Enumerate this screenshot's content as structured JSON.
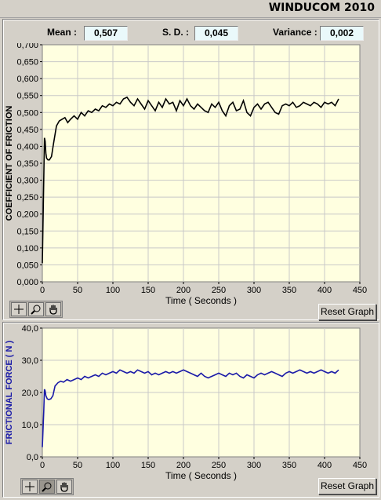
{
  "app_title": "WINDUCOM 2010",
  "stats": {
    "mean_label": "Mean :",
    "mean_value": "0,507",
    "sd_label": "S. D. :",
    "sd_value": "0,045",
    "variance_label": "Variance :",
    "variance_value": "0,002"
  },
  "colors": {
    "plot_bg": "#ffffe0",
    "grid": "#c8c8c8",
    "cof_line": "#000000",
    "force_line": "#1a1aa8",
    "force_label": "#1a1aa8"
  },
  "chart_data": [
    {
      "type": "line",
      "xlabel": "Time ( Seconds )",
      "ylabel": "COEFFICIENT OF FRICTION",
      "xlim": [
        0,
        450
      ],
      "ylim": [
        0,
        0.7
      ],
      "xticks": [
        "0",
        "50",
        "100",
        "150",
        "200",
        "250",
        "300",
        "350",
        "400",
        "450"
      ],
      "yticks": [
        "0,000",
        "0,050",
        "0,100",
        "0,150",
        "0,200",
        "0,250",
        "0,300",
        "0,350",
        "0,400",
        "0,450",
        "0,500",
        "0,550",
        "0,600",
        "0,650",
        "0,700"
      ],
      "grid": true,
      "series": [
        {
          "x": [
            0,
            2,
            3,
            4,
            5,
            6,
            8,
            10,
            13,
            16,
            20,
            24,
            28,
            32,
            36,
            40,
            45,
            50,
            55,
            60,
            65,
            70,
            75,
            80,
            85,
            90,
            95,
            100,
            105,
            110,
            115,
            120,
            125,
            130,
            135,
            140,
            145,
            150,
            155,
            160,
            165,
            170,
            175,
            180,
            185,
            190,
            195,
            200,
            205,
            210,
            215,
            220,
            225,
            230,
            235,
            240,
            245,
            250,
            255,
            260,
            265,
            270,
            275,
            280,
            285,
            290,
            295,
            300,
            305,
            310,
            315,
            320,
            325,
            330,
            335,
            340,
            345,
            350,
            355,
            360,
            365,
            370,
            375,
            380,
            385,
            390,
            395,
            400,
            405,
            410,
            415,
            420
          ],
          "y": [
            0.055,
            0.3,
            0.425,
            0.415,
            0.38,
            0.365,
            0.36,
            0.36,
            0.37,
            0.41,
            0.46,
            0.475,
            0.48,
            0.485,
            0.47,
            0.48,
            0.49,
            0.48,
            0.5,
            0.49,
            0.505,
            0.5,
            0.51,
            0.505,
            0.52,
            0.515,
            0.525,
            0.52,
            0.53,
            0.525,
            0.54,
            0.545,
            0.53,
            0.52,
            0.54,
            0.525,
            0.51,
            0.535,
            0.52,
            0.505,
            0.53,
            0.515,
            0.54,
            0.525,
            0.53,
            0.505,
            0.535,
            0.52,
            0.54,
            0.52,
            0.51,
            0.525,
            0.515,
            0.505,
            0.5,
            0.525,
            0.515,
            0.53,
            0.505,
            0.49,
            0.52,
            0.53,
            0.505,
            0.51,
            0.535,
            0.5,
            0.49,
            0.515,
            0.525,
            0.51,
            0.525,
            0.53,
            0.515,
            0.5,
            0.495,
            0.52,
            0.525,
            0.52,
            0.53,
            0.515,
            0.52,
            0.53,
            0.525,
            0.52,
            0.53,
            0.525,
            0.515,
            0.53,
            0.525,
            0.53,
            0.52,
            0.54
          ]
        }
      ]
    },
    {
      "type": "line",
      "xlabel": "Time ( Seconds )",
      "ylabel": "FRICTIONAL FORCE ( N )",
      "xlim": [
        0,
        450
      ],
      "ylim": [
        0,
        40
      ],
      "xticks": [
        "0",
        "50",
        "100",
        "150",
        "200",
        "250",
        "300",
        "350",
        "400",
        "450"
      ],
      "yticks": [
        "0,0",
        "10,0",
        "20,0",
        "30,0",
        "40,0"
      ],
      "grid": true,
      "series": [
        {
          "x": [
            0,
            2,
            3,
            4,
            5,
            7,
            9,
            12,
            15,
            18,
            22,
            26,
            30,
            35,
            40,
            45,
            50,
            55,
            60,
            65,
            70,
            75,
            80,
            85,
            90,
            95,
            100,
            105,
            110,
            115,
            120,
            125,
            130,
            135,
            140,
            145,
            150,
            155,
            160,
            165,
            170,
            175,
            180,
            185,
            190,
            195,
            200,
            205,
            210,
            215,
            220,
            225,
            230,
            235,
            240,
            245,
            250,
            255,
            260,
            265,
            270,
            275,
            280,
            285,
            290,
            295,
            300,
            305,
            310,
            315,
            320,
            325,
            330,
            335,
            340,
            345,
            350,
            355,
            360,
            365,
            370,
            375,
            380,
            385,
            390,
            395,
            400,
            405,
            410,
            415,
            420
          ],
          "y": [
            3,
            14,
            21,
            20.5,
            19,
            18,
            17.8,
            18,
            19,
            22,
            23,
            23.5,
            23.2,
            24,
            23.5,
            24,
            24.5,
            24,
            25,
            24.5,
            25,
            25.5,
            25,
            26,
            25.5,
            26,
            26.5,
            26,
            27,
            26.5,
            26,
            26.5,
            26,
            27,
            26.5,
            26,
            26.5,
            25.5,
            26,
            25.5,
            26,
            26.5,
            26,
            26.5,
            26,
            26.5,
            27,
            26.5,
            26,
            25.5,
            25,
            26,
            25,
            24.5,
            25,
            25.5,
            26,
            25.5,
            25,
            26,
            25.5,
            26,
            25,
            24.5,
            25.5,
            25,
            24.5,
            25.5,
            26,
            25.5,
            26,
            26.5,
            26,
            25.5,
            25,
            26,
            26.5,
            26,
            26.5,
            27,
            26.5,
            26,
            26.5,
            26,
            26.5,
            27,
            26.5,
            26,
            26.5,
            26,
            27
          ]
        }
      ]
    }
  ],
  "toolbox": {
    "cursor_icon": "crosshair-icon",
    "zoom_icon": "zoom-icon",
    "pan_icon": "hand-pan-icon"
  },
  "reset_label": "Reset Graph"
}
